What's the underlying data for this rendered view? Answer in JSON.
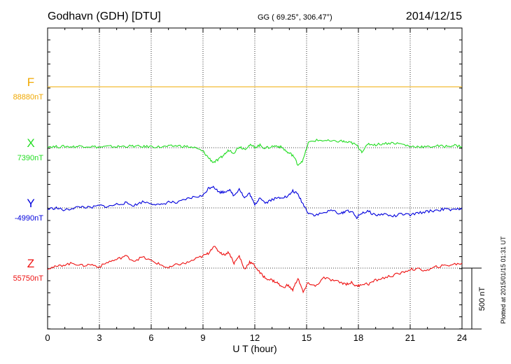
{
  "header": {
    "station": "Godhavn (GDH)  [DTU]",
    "coords": "GG ( 69.25°, 306.47°)",
    "date": "2014/12/15"
  },
  "footer": {
    "plotted": "Plotted at 2015/01/15 01:31  UT"
  },
  "colors": {
    "F": "#f0a800",
    "X": "#22dd22",
    "Y": "#0000dd",
    "Z": "#ee1111",
    "grid": "#000000"
  },
  "chart_data": {
    "type": "line",
    "title": "Godhavn (GDH)  [DTU]",
    "xlabel": "U T (hour)",
    "ylabel": "",
    "xlim": [
      0,
      24
    ],
    "x_ticks": [
      0,
      3,
      6,
      9,
      12,
      15,
      18,
      21,
      24
    ],
    "x_tick_labels": [
      "0",
      "3",
      "6",
      "9",
      "12",
      "15",
      "18",
      "21",
      "24"
    ],
    "scale_bar": {
      "label": "500 nT",
      "value_nT": 500
    },
    "grid": true,
    "series": [
      {
        "name": "F",
        "baseline_label": "88880nT",
        "baseline_nT": 88880,
        "x": [
          0,
          24
        ],
        "y": [
          0,
          0
        ]
      },
      {
        "name": "X",
        "baseline_label": "7390nT",
        "baseline_nT": 7390,
        "x": [
          0,
          0.5,
          1,
          1.5,
          2,
          2.5,
          3,
          3.5,
          4,
          4.5,
          5,
          5.5,
          6,
          6.5,
          7,
          7.5,
          8,
          8.5,
          9,
          9.3,
          9.6,
          9.9,
          10.2,
          10.5,
          10.8,
          11.1,
          11.4,
          11.7,
          12,
          12.3,
          12.6,
          13,
          13.3,
          13.6,
          13.9,
          14.2,
          14.5,
          14.8,
          15.1,
          15.5,
          16,
          16.5,
          17,
          17.3,
          17.6,
          17.9,
          18.2,
          18.6,
          19,
          19.5,
          20,
          20.5,
          21,
          21.5,
          22,
          22.5,
          23,
          23.5,
          24
        ],
        "y": [
          10,
          8,
          10,
          8,
          14,
          10,
          4,
          10,
          8,
          12,
          12,
          8,
          10,
          6,
          10,
          16,
          10,
          0,
          -30,
          -80,
          -120,
          -100,
          -60,
          -20,
          -40,
          10,
          -10,
          20,
          5,
          20,
          -5,
          10,
          15,
          0,
          -40,
          -60,
          -140,
          -100,
          40,
          60,
          60,
          50,
          55,
          45,
          40,
          20,
          -30,
          30,
          25,
          35,
          40,
          30,
          10,
          10,
          5,
          15,
          10,
          20,
          10
        ]
      },
      {
        "name": "Y",
        "baseline_label": "-4990nT",
        "baseline_nT": -4990,
        "x": [
          0,
          0.5,
          1,
          1.5,
          2,
          2.5,
          3,
          3.5,
          4,
          4.5,
          5,
          5.5,
          6,
          6.5,
          7,
          7.5,
          8,
          8.5,
          9,
          9.3,
          9.6,
          9.9,
          10.2,
          10.5,
          10.8,
          11.1,
          11.4,
          11.7,
          12,
          12.3,
          12.6,
          13,
          13.3,
          13.6,
          13.9,
          14.2,
          14.5,
          14.8,
          15.1,
          15.5,
          16,
          16.5,
          17,
          17.3,
          17.6,
          17.9,
          18.2,
          18.6,
          19,
          19.5,
          20,
          20.5,
          21,
          21.5,
          22,
          22.5,
          23,
          23.5,
          24
        ],
        "y": [
          -10,
          0,
          -20,
          0,
          10,
          0,
          20,
          10,
          30,
          40,
          20,
          50,
          40,
          20,
          50,
          40,
          70,
          90,
          100,
          160,
          180,
          130,
          130,
          150,
          100,
          160,
          80,
          120,
          20,
          90,
          40,
          70,
          80,
          90,
          90,
          140,
          110,
          30,
          -40,
          -60,
          -40,
          -20,
          -50,
          -20,
          -30,
          -80,
          -40,
          -30,
          -60,
          -50,
          -70,
          -50,
          -60,
          -40,
          -30,
          -20,
          -10,
          -20,
          0
        ]
      },
      {
        "name": "Z",
        "baseline_label": "55750nT",
        "baseline_nT": 55750,
        "x": [
          0,
          0.5,
          1,
          1.5,
          2,
          2.5,
          3,
          3.5,
          4,
          4.5,
          5,
          5.5,
          6,
          6.5,
          7,
          7.5,
          8,
          8.5,
          9,
          9.3,
          9.6,
          9.9,
          10.2,
          10.5,
          10.8,
          11.1,
          11.4,
          11.7,
          12,
          12.3,
          12.6,
          13,
          13.3,
          13.6,
          13.9,
          14.2,
          14.5,
          14.8,
          15.1,
          15.5,
          16,
          16.5,
          17,
          17.3,
          17.6,
          17.9,
          18.2,
          18.6,
          19,
          19.5,
          20,
          20.5,
          21,
          21.5,
          22,
          22.5,
          23,
          23.5,
          24
        ],
        "y": [
          0,
          10,
          30,
          40,
          20,
          30,
          10,
          50,
          70,
          100,
          60,
          90,
          60,
          30,
          0,
          30,
          40,
          70,
          100,
          120,
          180,
          140,
          110,
          130,
          40,
          100,
          -10,
          50,
          20,
          -40,
          -80,
          -100,
          -120,
          -160,
          -140,
          -180,
          -80,
          -200,
          -120,
          -150,
          -80,
          -100,
          -120,
          -130,
          -120,
          -150,
          -130,
          -130,
          -100,
          -80,
          -60,
          -40,
          -10,
          -10,
          -20,
          10,
          20,
          30,
          40
        ]
      }
    ]
  }
}
